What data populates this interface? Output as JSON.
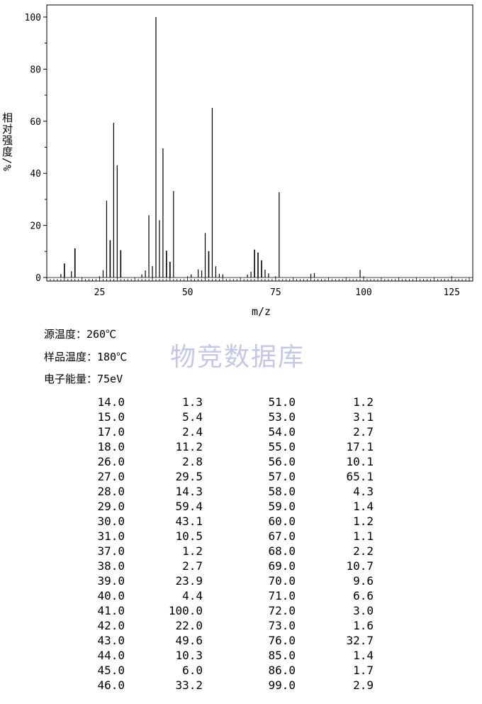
{
  "chart_data": {
    "type": "bar",
    "title": "",
    "xlabel": "m/z",
    "ylabel": "相对强度/%",
    "xlim": [
      10,
      131
    ],
    "ylim": [
      0,
      105
    ],
    "xticks": [
      25,
      50,
      75,
      100,
      125
    ],
    "yticks": [
      0,
      20,
      40,
      60,
      80,
      100
    ],
    "x": [
      14,
      15,
      17,
      18,
      26,
      27,
      28,
      29,
      30,
      31,
      37,
      38,
      39,
      40,
      41,
      42,
      43,
      44,
      45,
      46,
      51,
      53,
      54,
      55,
      56,
      57,
      58,
      59,
      60,
      67,
      68,
      69,
      70,
      71,
      72,
      73,
      76,
      85,
      86,
      99
    ],
    "values": [
      1.3,
      5.4,
      2.4,
      11.2,
      2.8,
      29.5,
      14.3,
      59.4,
      43.1,
      10.5,
      1.2,
      2.7,
      23.9,
      4.4,
      100.0,
      22.0,
      49.6,
      10.3,
      6.0,
      33.2,
      1.2,
      3.1,
      2.7,
      17.1,
      10.1,
      65.1,
      4.3,
      1.4,
      1.2,
      1.1,
      2.2,
      10.7,
      9.6,
      6.6,
      3.0,
      1.6,
      32.7,
      1.4,
      1.7,
      2.9
    ]
  },
  "conditions": {
    "source_temp": "源温度：260℃",
    "sample_temp": "样品温度：180℃",
    "electron_energy": "电子能量：75eV"
  },
  "watermark": "物竞数据库",
  "table": {
    "rows": [
      [
        "14.0",
        "1.3",
        "51.0",
        "1.2"
      ],
      [
        "15.0",
        "5.4",
        "53.0",
        "3.1"
      ],
      [
        "17.0",
        "2.4",
        "54.0",
        "2.7"
      ],
      [
        "18.0",
        "11.2",
        "55.0",
        "17.1"
      ],
      [
        "26.0",
        "2.8",
        "56.0",
        "10.1"
      ],
      [
        "27.0",
        "29.5",
        "57.0",
        "65.1"
      ],
      [
        "28.0",
        "14.3",
        "58.0",
        "4.3"
      ],
      [
        "29.0",
        "59.4",
        "59.0",
        "1.4"
      ],
      [
        "30.0",
        "43.1",
        "60.0",
        "1.2"
      ],
      [
        "31.0",
        "10.5",
        "67.0",
        "1.1"
      ],
      [
        "37.0",
        "1.2",
        "68.0",
        "2.2"
      ],
      [
        "38.0",
        "2.7",
        "69.0",
        "10.7"
      ],
      [
        "39.0",
        "23.9",
        "70.0",
        "9.6"
      ],
      [
        "40.0",
        "4.4",
        "71.0",
        "6.6"
      ],
      [
        "41.0",
        "100.0",
        "72.0",
        "3.0"
      ],
      [
        "42.0",
        "22.0",
        "73.0",
        "1.6"
      ],
      [
        "43.0",
        "49.6",
        "76.0",
        "32.7"
      ],
      [
        "44.0",
        "10.3",
        "85.0",
        "1.4"
      ],
      [
        "45.0",
        "6.0",
        "86.0",
        "1.7"
      ],
      [
        "46.0",
        "33.2",
        "99.0",
        "2.9"
      ]
    ]
  }
}
